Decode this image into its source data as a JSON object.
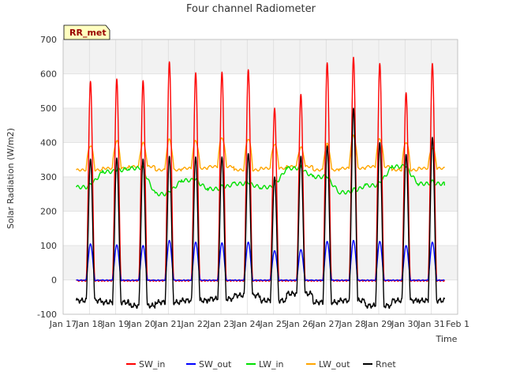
{
  "chart_data": {
    "type": "line",
    "title": "Four channel Radiometer",
    "xlabel": "Time",
    "ylabel": "Solar Radiation (W/m2)",
    "ylim": [
      -100,
      700
    ],
    "yticks": [
      -100,
      0,
      100,
      200,
      300,
      400,
      500,
      600,
      700
    ],
    "xlim": [
      0,
      15
    ],
    "xtick_labels": [
      "Jan 17",
      "Jan 18",
      "Jan 19",
      "Jan 20",
      "Jan 21",
      "Jan 22",
      "Jan 23",
      "Jan 24",
      "Jan 25",
      "Jan 26",
      "Jan 27",
      "Jan 28",
      "Jan 29",
      "Jan 30",
      "Jan 31",
      "Feb 1"
    ],
    "grid": true,
    "annotation": "RR_met",
    "legend_position": "bottom-center",
    "days": [
      {
        "sw_in": 578,
        "sw_out": 105,
        "lw_in": 270,
        "lw_out": 392,
        "rnet_peak": 352,
        "rnet_night": -60
      },
      {
        "sw_in": 585,
        "sw_out": 102,
        "lw_in": 315,
        "lw_out": 405,
        "rnet_peak": 355,
        "rnet_night": -65
      },
      {
        "sw_in": 580,
        "sw_out": 100,
        "lw_in": 325,
        "lw_out": 398,
        "rnet_peak": 352,
        "rnet_night": -75
      },
      {
        "sw_in": 635,
        "sw_out": 115,
        "lw_in": 250,
        "lw_out": 408,
        "rnet_peak": 360,
        "rnet_night": -65
      },
      {
        "sw_in": 603,
        "sw_out": 110,
        "lw_in": 290,
        "lw_out": 405,
        "rnet_peak": 358,
        "rnet_night": -60
      },
      {
        "sw_in": 605,
        "sw_out": 108,
        "lw_in": 265,
        "lw_out": 415,
        "rnet_peak": 358,
        "rnet_night": -55
      },
      {
        "sw_in": 612,
        "sw_out": 110,
        "lw_in": 280,
        "lw_out": 412,
        "rnet_peak": 368,
        "rnet_night": -45
      },
      {
        "sw_in": 500,
        "sw_out": 85,
        "lw_in": 270,
        "lw_out": 395,
        "rnet_peak": 300,
        "rnet_night": -60
      },
      {
        "sw_in": 540,
        "sw_out": 88,
        "lw_in": 325,
        "lw_out": 385,
        "rnet_peak": 360,
        "rnet_night": -40
      },
      {
        "sw_in": 632,
        "sw_out": 112,
        "lw_in": 300,
        "lw_out": 395,
        "rnet_peak": 390,
        "rnet_night": -65
      },
      {
        "sw_in": 648,
        "sw_out": 115,
        "lw_in": 255,
        "lw_out": 420,
        "rnet_peak": 500,
        "rnet_night": -60
      },
      {
        "sw_in": 630,
        "sw_out": 112,
        "lw_in": 275,
        "lw_out": 412,
        "rnet_peak": 400,
        "rnet_night": -75
      },
      {
        "sw_in": 545,
        "sw_out": 100,
        "lw_in": 330,
        "lw_out": 402,
        "rnet_peak": 365,
        "rnet_night": -60
      },
      {
        "sw_in": 630,
        "sw_out": 110,
        "lw_in": 280,
        "lw_out": 385,
        "rnet_peak": 415,
        "rnet_night": -60
      }
    ],
    "series": [
      {
        "name": "SW_in",
        "color": "#ff0000"
      },
      {
        "name": "SW_out",
        "color": "#0000ff"
      },
      {
        "name": "LW_in",
        "color": "#00e000"
      },
      {
        "name": "LW_out",
        "color": "#ffa500"
      },
      {
        "name": "Rnet",
        "color": "#000000"
      }
    ]
  }
}
